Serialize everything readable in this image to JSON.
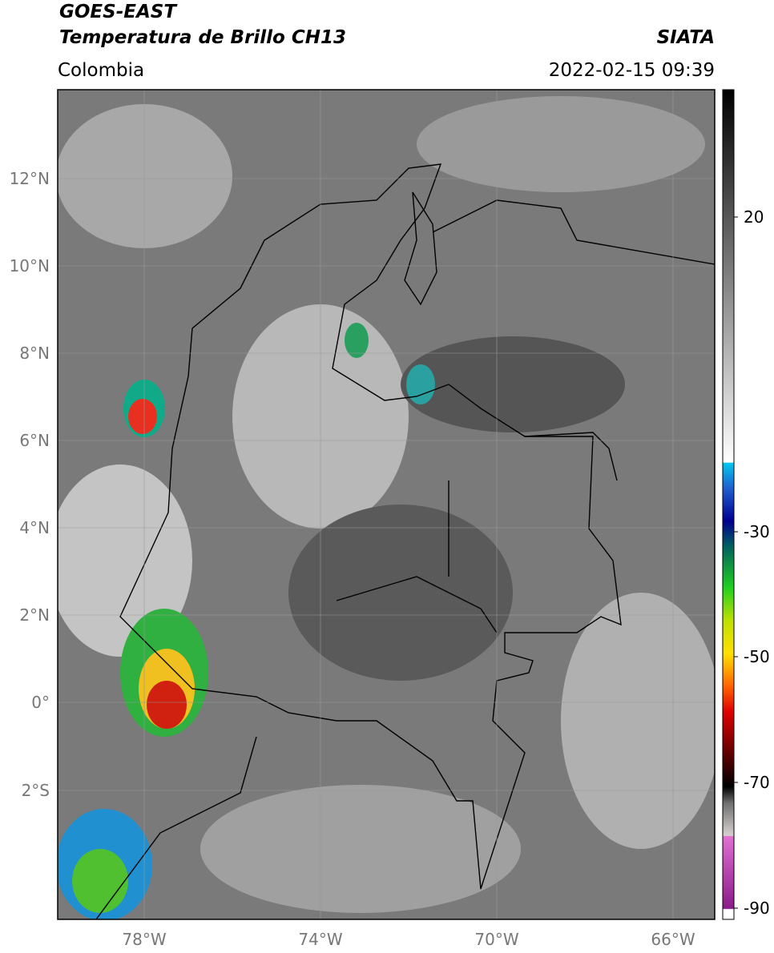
{
  "header": {
    "title_line1": "GOES-EAST",
    "title_line2": "Temperatura de Brillo CH13",
    "subtitle": "Colombia",
    "source": "SIATA",
    "datetime": "2022-02-15 09:39"
  },
  "map": {
    "lat_ticks": [
      "12°N",
      "10°N",
      "8°N",
      "6°N",
      "4°N",
      "2°N",
      "0°",
      "2°S"
    ],
    "lon_ticks": [
      "78°W",
      "74°W",
      "70°W",
      "66°W"
    ]
  },
  "colorbar": {
    "ticks": [
      20,
      -30,
      -50,
      -70,
      -90
    ]
  }
}
